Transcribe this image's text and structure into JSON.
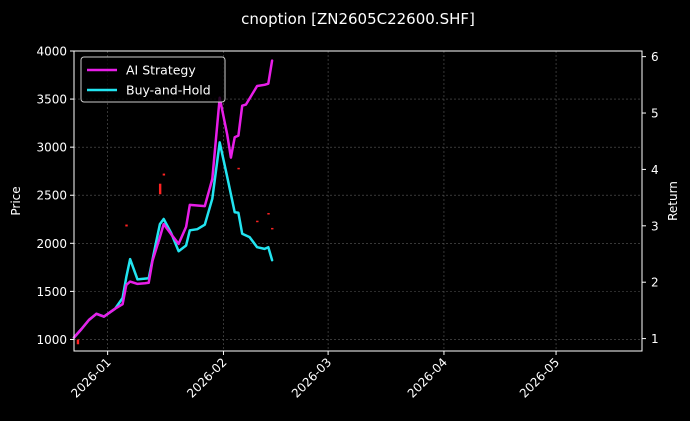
{
  "chart_data": {
    "type": "line",
    "title": "cnoption [ZN2605C22600.SHF]",
    "xlabel": "",
    "ylabel_left": "Price",
    "ylabel_right": "Return",
    "x_range": [
      "2025-12-23",
      "2026-05-24"
    ],
    "ylim_left": [
      880,
      4000
    ],
    "ylim_right": [
      0.78,
      6.1
    ],
    "left_ticks": [
      1000,
      1500,
      2000,
      2500,
      3000,
      3500,
      4000
    ],
    "right_ticks": [
      1,
      2,
      3,
      4,
      5,
      6
    ],
    "x_ticks": [
      {
        "date": "2026-01-01",
        "label": "2026-01"
      },
      {
        "date": "2026-02-01",
        "label": "2026-02"
      },
      {
        "date": "2026-03-01",
        "label": "2026-03"
      },
      {
        "date": "2026-04-01",
        "label": "2026-04"
      },
      {
        "date": "2026-05-01",
        "label": "2026-05"
      }
    ],
    "grid": true,
    "legend_position": "top-left",
    "series": [
      {
        "name": "AI Strategy",
        "axis": "right",
        "color": "#e81ee8",
        "points": [
          [
            "2025-12-23",
            1.02
          ],
          [
            "2025-12-25",
            1.17
          ],
          [
            "2025-12-27",
            1.33
          ],
          [
            "2025-12-29",
            1.44
          ],
          [
            "2025-12-31",
            1.39
          ],
          [
            "2026-01-03",
            1.53
          ],
          [
            "2026-01-05",
            1.61
          ],
          [
            "2026-01-06",
            1.95
          ],
          [
            "2026-01-07",
            2.01
          ],
          [
            "2026-01-09",
            1.97
          ],
          [
            "2026-01-11",
            1.98
          ],
          [
            "2026-01-12",
            1.99
          ],
          [
            "2026-01-13",
            2.38
          ],
          [
            "2026-01-15",
            2.8
          ],
          [
            "2026-01-16",
            3.03
          ],
          [
            "2026-01-18",
            2.85
          ],
          [
            "2026-01-20",
            2.68
          ],
          [
            "2026-01-22",
            2.98
          ],
          [
            "2026-01-23",
            3.37
          ],
          [
            "2026-01-27",
            3.35
          ],
          [
            "2026-01-29",
            3.83
          ],
          [
            "2026-01-31",
            5.27
          ],
          [
            "2026-02-02",
            4.62
          ],
          [
            "2026-02-03",
            4.21
          ],
          [
            "2026-02-04",
            4.57
          ],
          [
            "2026-02-05",
            4.6
          ],
          [
            "2026-02-06",
            5.13
          ],
          [
            "2026-02-07",
            5.15
          ],
          [
            "2026-02-10",
            5.48
          ],
          [
            "2026-02-12",
            5.5
          ],
          [
            "2026-02-13",
            5.52
          ],
          [
            "2026-02-14",
            5.93
          ]
        ]
      },
      {
        "name": "Buy-and-Hold",
        "axis": "right",
        "color": "#22e4f0",
        "points": [
          [
            "2025-12-23",
            1.02
          ],
          [
            "2025-12-25",
            1.17
          ],
          [
            "2025-12-27",
            1.33
          ],
          [
            "2025-12-29",
            1.44
          ],
          [
            "2025-12-31",
            1.39
          ],
          [
            "2026-01-03",
            1.53
          ],
          [
            "2026-01-05",
            1.72
          ],
          [
            "2026-01-06",
            2.09
          ],
          [
            "2026-01-07",
            2.41
          ],
          [
            "2026-01-09",
            2.05
          ],
          [
            "2026-01-12",
            2.07
          ],
          [
            "2026-01-14",
            2.72
          ],
          [
            "2026-01-15",
            3.03
          ],
          [
            "2026-01-16",
            3.12
          ],
          [
            "2026-01-18",
            2.87
          ],
          [
            "2026-01-20",
            2.55
          ],
          [
            "2026-01-22",
            2.65
          ],
          [
            "2026-01-23",
            2.92
          ],
          [
            "2026-01-25",
            2.94
          ],
          [
            "2026-01-27",
            3.02
          ],
          [
            "2026-01-29",
            3.48
          ],
          [
            "2026-01-31",
            4.48
          ],
          [
            "2026-02-02",
            3.87
          ],
          [
            "2026-02-04",
            3.24
          ],
          [
            "2026-02-05",
            3.23
          ],
          [
            "2026-02-06",
            2.86
          ],
          [
            "2026-02-08",
            2.8
          ],
          [
            "2026-02-10",
            2.62
          ],
          [
            "2026-02-12",
            2.59
          ],
          [
            "2026-02-13",
            2.62
          ],
          [
            "2026-02-14",
            2.39
          ]
        ]
      }
    ],
    "price_marks": {
      "axis": "left",
      "color": "#ff2222",
      "bars": [
        [
          "2025-12-24",
          950,
          1000
        ],
        [
          "2026-01-06",
          2175,
          2195
        ],
        [
          "2026-01-15",
          2510,
          2620
        ],
        [
          "2026-01-16",
          2705,
          2725
        ],
        [
          "2026-02-05",
          2770,
          2785
        ],
        [
          "2026-02-10",
          2225,
          2235
        ],
        [
          "2026-02-13",
          2300,
          2315
        ],
        [
          "2026-02-14",
          2150,
          2160
        ]
      ]
    }
  }
}
